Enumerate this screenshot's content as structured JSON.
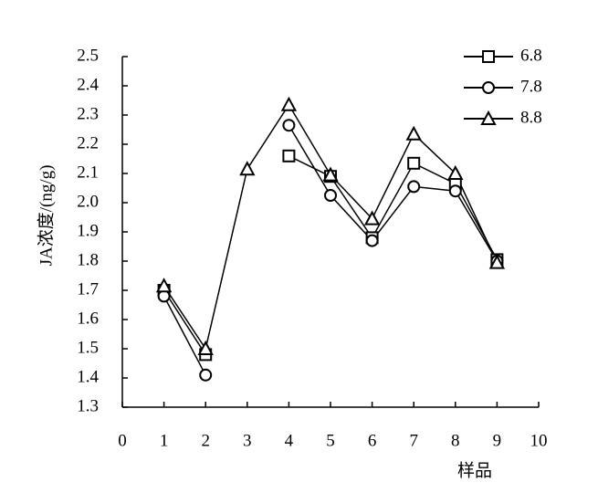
{
  "chart_data": {
    "type": "line",
    "x_label": "样品",
    "y_label": "JA浓度/(ng/g)",
    "x": [
      1,
      2,
      3,
      4,
      5,
      6,
      7,
      8,
      9
    ],
    "series": [
      {
        "name": "6.8",
        "marker": "square",
        "color": "#000000",
        "values": [
          1.7,
          1.48,
          null,
          2.16,
          2.09,
          1.88,
          2.135,
          2.065,
          1.805
        ]
      },
      {
        "name": "7.8",
        "marker": "circle",
        "color": "#000000",
        "values": [
          1.68,
          1.41,
          null,
          2.265,
          2.025,
          1.87,
          2.055,
          2.04,
          1.8
        ]
      },
      {
        "name": "8.8",
        "marker": "triangle",
        "color": "#000000",
        "values": [
          1.715,
          1.5,
          2.115,
          2.335,
          2.095,
          1.945,
          2.235,
          2.1,
          1.795
        ]
      }
    ],
    "xlim": [
      0,
      10
    ],
    "xticks": [
      0,
      1,
      2,
      3,
      4,
      5,
      6,
      7,
      8,
      9,
      10
    ],
    "ylim": [
      1.3,
      2.5
    ],
    "yticks": [
      1.3,
      1.4,
      1.5,
      1.6,
      1.7,
      1.8,
      1.9,
      {
        "value": 2,
        "label": "2.0"
      },
      2.1,
      2.2,
      2.3,
      2.4,
      2.5
    ],
    "legend": "top-right"
  }
}
